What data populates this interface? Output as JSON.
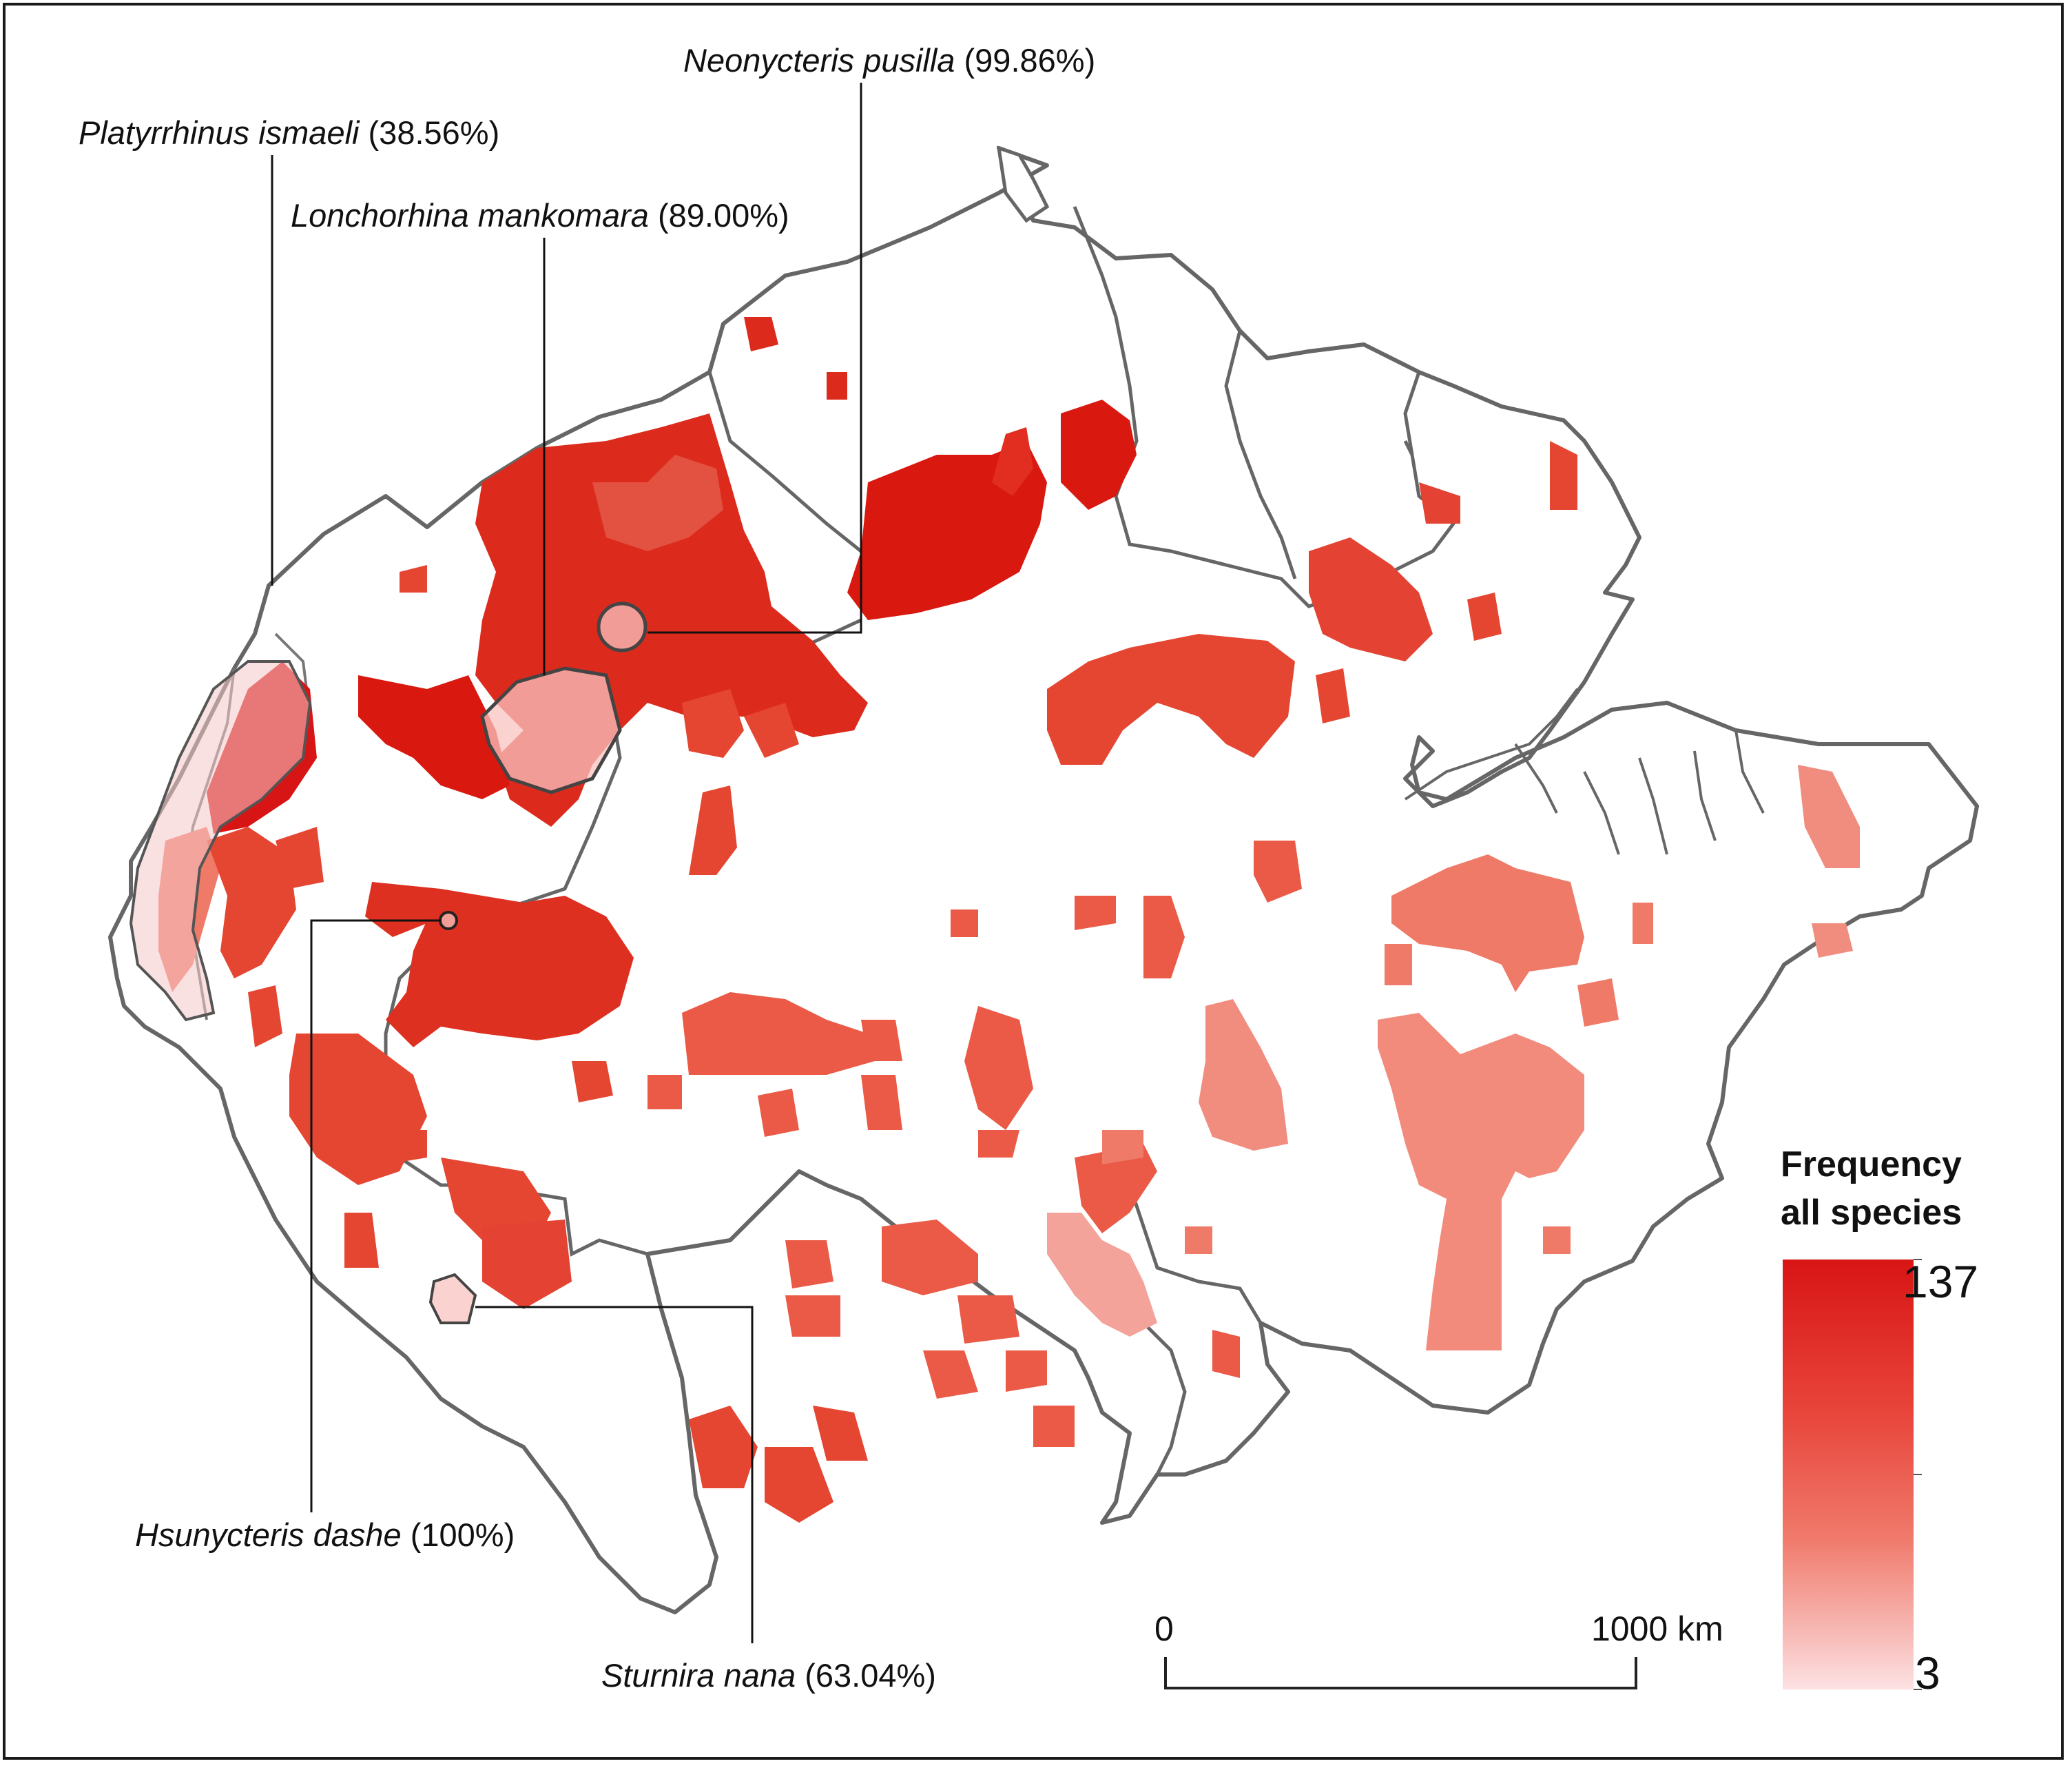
{
  "species_labels": {
    "neonycteris": {
      "name": "Neonycteris pusilla",
      "pct": "(99.86%)"
    },
    "platyrrhinus": {
      "name": "Platyrrhinus ismaeli",
      "pct": "(38.56%)"
    },
    "lonchorhina": {
      "name": "Lonchorhina mankomara",
      "pct": "(89.00%)"
    },
    "hsunycteris": {
      "name": "Hsunycteris dashe",
      "pct": "(100%)"
    },
    "sturnira": {
      "name": "Sturnira nana",
      "pct": "(63.04%)"
    }
  },
  "legend": {
    "title_line1": "Frequency",
    "title_line2": "all species",
    "max": "137",
    "min": "3",
    "color_high": "#d81515",
    "color_low": "#fde2e4"
  },
  "scale_bar": {
    "start_label": "0",
    "end_label": "1000 km"
  },
  "colors": {
    "border": "#666666",
    "dark_red": "#d9190f",
    "mid_red": "#e54632",
    "light_red": "#ef7a68",
    "pale_red": "#f3a39a"
  }
}
